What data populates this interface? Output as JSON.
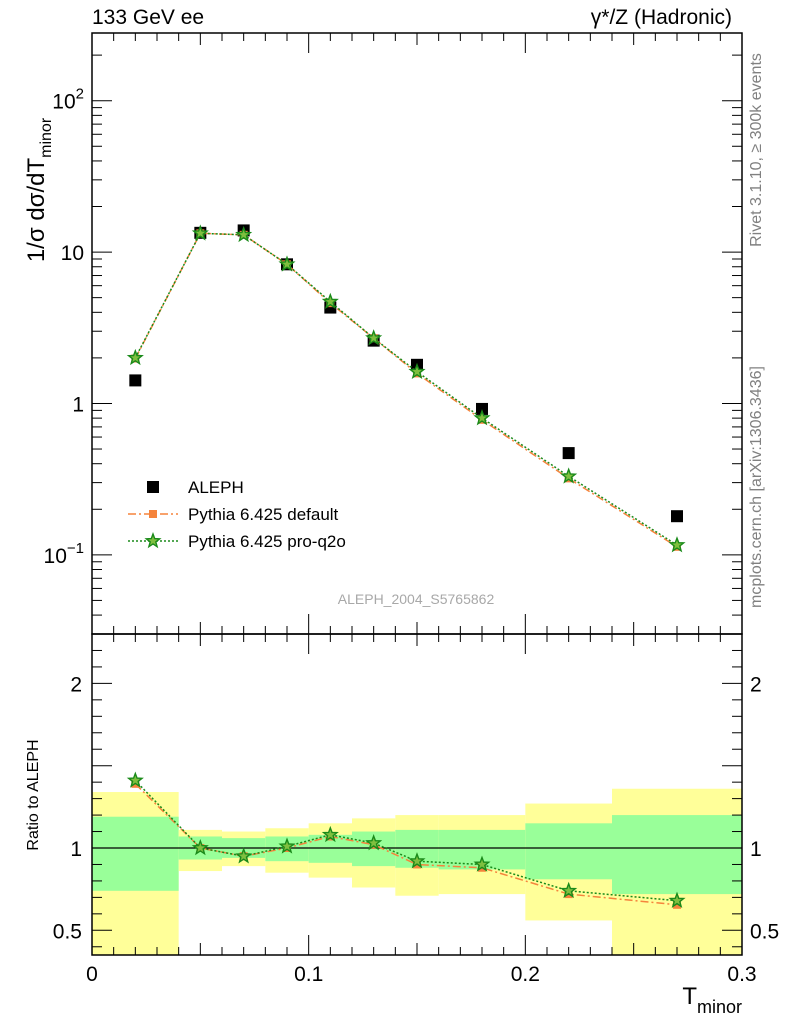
{
  "header": {
    "left_label": "133 GeV ee",
    "right_label": "γ*/Z (Hadronic)"
  },
  "side_text": {
    "top": "Rivet 3.1.10, ≥ 300k events",
    "bottom": "mcplots.cern.ch [arXiv:1306.3436]"
  },
  "watermark": "ALEPH_2004_S5765862",
  "chart_data": [
    {
      "type": "scatter",
      "panel": "main",
      "yscale": "log",
      "ylabel_main": "1/σ  dσ/dT",
      "ylabel_sub": "minor",
      "xlabel_main": "T",
      "xlabel_sub": "minor",
      "xlim": [
        0,
        0.3
      ],
      "ylim": [
        0.03,
        280
      ],
      "y_ticks": [
        {
          "value": 0.1,
          "base": "10",
          "exp": "−1"
        },
        {
          "value": 1,
          "label": "1"
        },
        {
          "value": 10,
          "label": "10"
        },
        {
          "value": 100,
          "base": "10",
          "exp": "2"
        }
      ],
      "legend_placement": "lower-left",
      "series": [
        {
          "name": "ALEPH",
          "style": "data",
          "color": "#000000",
          "x": [
            0.02,
            0.05,
            0.07,
            0.09,
            0.11,
            0.13,
            0.15,
            0.18,
            0.22,
            0.27
          ],
          "y": [
            1.42,
            13.4,
            13.9,
            8.3,
            4.3,
            2.6,
            1.8,
            0.92,
            0.47,
            0.18
          ]
        },
        {
          "name": "Pythia 6.425 default",
          "style": "mc_default",
          "color": "#f5843c",
          "x": [
            0.02,
            0.05,
            0.07,
            0.09,
            0.11,
            0.13,
            0.15,
            0.18,
            0.22,
            0.27
          ],
          "y": [
            1.98,
            13.3,
            13.0,
            8.3,
            4.6,
            2.7,
            1.58,
            0.78,
            0.32,
            0.113
          ]
        },
        {
          "name": "Pythia 6.425 pro-q2o",
          "style": "mc_proq2o",
          "color": "#1a8a1a",
          "x": [
            0.02,
            0.05,
            0.07,
            0.09,
            0.11,
            0.13,
            0.15,
            0.18,
            0.22,
            0.27
          ],
          "y": [
            2.0,
            13.3,
            13.0,
            8.3,
            4.7,
            2.7,
            1.62,
            0.8,
            0.33,
            0.116
          ]
        }
      ]
    },
    {
      "type": "scatter",
      "panel": "ratio",
      "ylabel": "Ratio to ALEPH",
      "xlim": [
        0,
        0.3
      ],
      "ylim": [
        0.35,
        2.3
      ],
      "x_ticks": [
        {
          "value": 0,
          "label": "0"
        },
        {
          "value": 0.1,
          "label": "0.1"
        },
        {
          "value": 0.2,
          "label": "0.2"
        },
        {
          "value": 0.3,
          "label": "0.3"
        }
      ],
      "y_ticks": [
        {
          "value": 0.5,
          "label": "0.5"
        },
        {
          "value": 1,
          "label": "1"
        },
        {
          "value": 2,
          "label": "2"
        }
      ],
      "bands": {
        "bins": [
          {
            "x0": 0.0,
            "x1": 0.04,
            "yellow": [
              0.3,
              1.34
            ],
            "green": [
              0.74,
              1.19
            ]
          },
          {
            "x0": 0.04,
            "x1": 0.06,
            "yellow": [
              0.86,
              1.11
            ],
            "green": [
              0.93,
              1.07
            ]
          },
          {
            "x0": 0.06,
            "x1": 0.08,
            "yellow": [
              0.89,
              1.1
            ],
            "green": [
              0.94,
              1.06
            ]
          },
          {
            "x0": 0.08,
            "x1": 0.1,
            "yellow": [
              0.85,
              1.12
            ],
            "green": [
              0.92,
              1.07
            ]
          },
          {
            "x0": 0.1,
            "x1": 0.12,
            "yellow": [
              0.82,
              1.15
            ],
            "green": [
              0.91,
              1.08
            ]
          },
          {
            "x0": 0.12,
            "x1": 0.14,
            "yellow": [
              0.76,
              1.18
            ],
            "green": [
              0.89,
              1.1
            ]
          },
          {
            "x0": 0.14,
            "x1": 0.16,
            "yellow": [
              0.71,
              1.2
            ],
            "green": [
              0.88,
              1.11
            ]
          },
          {
            "x0": 0.16,
            "x1": 0.2,
            "yellow": [
              0.72,
              1.2
            ],
            "green": [
              0.87,
              1.11
            ]
          },
          {
            "x0": 0.2,
            "x1": 0.24,
            "yellow": [
              0.56,
              1.27
            ],
            "green": [
              0.81,
              1.15
            ]
          },
          {
            "x0": 0.24,
            "x1": 0.3,
            "yellow": [
              0.3,
              1.36
            ],
            "green": [
              0.72,
              1.2
            ]
          }
        ]
      },
      "series": [
        {
          "name": "Pythia 6.425 default",
          "style": "mc_default",
          "color": "#f5843c",
          "x": [
            0.02,
            0.05,
            0.07,
            0.09,
            0.11,
            0.13,
            0.15,
            0.18,
            0.22,
            0.27
          ],
          "y": [
            1.39,
            1.0,
            0.95,
            1.0,
            1.07,
            1.02,
            0.9,
            0.88,
            0.72,
            0.655
          ]
        },
        {
          "name": "Pythia 6.425 pro-q2o",
          "style": "mc_proq2o",
          "color": "#1a8a1a",
          "x": [
            0.02,
            0.05,
            0.07,
            0.09,
            0.11,
            0.13,
            0.15,
            0.18,
            0.22,
            0.27
          ],
          "y": [
            1.41,
            1.0,
            0.95,
            1.01,
            1.08,
            1.03,
            0.92,
            0.9,
            0.74,
            0.68
          ]
        }
      ]
    }
  ]
}
